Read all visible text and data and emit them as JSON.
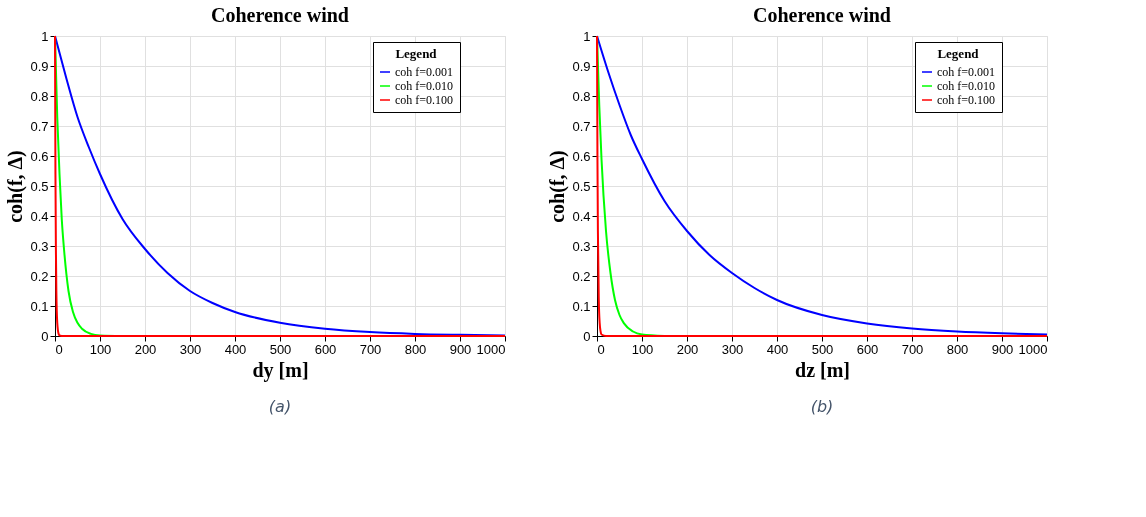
{
  "chart_data": [
    {
      "type": "line",
      "title": "Coherence   wind",
      "xlabel": "dy        [m]",
      "ylabel": "coh(f, Δ)",
      "legend_title": "Legend",
      "legend": "top right",
      "grid": true,
      "xlim": [
        0,
        1000
      ],
      "ylim": [
        0,
        1
      ],
      "xticks": [
        0,
        100,
        200,
        300,
        400,
        500,
        600,
        700,
        800,
        900,
        1000
      ],
      "yticks": [
        0,
        0.1,
        0.2,
        0.3,
        0.4,
        0.5,
        0.6,
        0.7,
        0.8,
        0.9,
        1
      ],
      "annotations": [
        "(a)"
      ],
      "series": [
        {
          "name": "coh f=0.001",
          "color": "#0000ff",
          "x": [
            0,
            25,
            50,
            75,
            100,
            150,
            200,
            250,
            300,
            350,
            400,
            500,
            600,
            700,
            800,
            900,
            1000
          ],
          "values": [
            1,
            0.86,
            0.73,
            0.63,
            0.54,
            0.39,
            0.29,
            0.21,
            0.15,
            0.11,
            0.08,
            0.044,
            0.024,
            0.013,
            0.007,
            0.004,
            0.002
          ]
        },
        {
          "name": "coh f=0.010",
          "color": "#00ff00",
          "x": [
            0,
            5,
            10,
            15,
            20,
            30,
            40,
            50,
            60,
            80,
            100,
            150
          ],
          "values": [
            1,
            0.73,
            0.54,
            0.39,
            0.29,
            0.15,
            0.08,
            0.044,
            0.024,
            0.007,
            0.002,
            0
          ]
        },
        {
          "name": "coh f=0.100",
          "color": "#ff0000",
          "x": [
            0,
            1,
            2,
            3,
            5,
            8,
            10,
            15,
            1000
          ],
          "values": [
            1,
            0.54,
            0.29,
            0.15,
            0.044,
            0.007,
            0.002,
            0,
            0
          ]
        }
      ]
    },
    {
      "type": "line",
      "title": "Coherence   wind",
      "xlabel": "dz        [m]",
      "ylabel": "coh(f, Δ)",
      "legend_title": "Legend",
      "legend": "top right",
      "grid": true,
      "xlim": [
        0,
        1000
      ],
      "ylim": [
        0,
        1
      ],
      "xticks": [
        0,
        100,
        200,
        300,
        400,
        500,
        600,
        700,
        800,
        900,
        1000
      ],
      "yticks": [
        0,
        0.1,
        0.2,
        0.3,
        0.4,
        0.5,
        0.6,
        0.7,
        0.8,
        0.9,
        1
      ],
      "annotations": [
        "(b)"
      ],
      "series": [
        {
          "name": "coh f=0.001",
          "color": "#0000ff",
          "x": [
            0,
            25,
            50,
            75,
            100,
            150,
            200,
            250,
            300,
            350,
            400,
            500,
            600,
            700,
            800,
            900,
            1000
          ],
          "values": [
            1,
            0.88,
            0.77,
            0.67,
            0.59,
            0.45,
            0.35,
            0.27,
            0.21,
            0.16,
            0.12,
            0.07,
            0.042,
            0.025,
            0.015,
            0.009,
            0.005
          ]
        },
        {
          "name": "coh f=0.010",
          "color": "#00ff00",
          "x": [
            0,
            5,
            10,
            20,
            30,
            40,
            50,
            60,
            80,
            100,
            150
          ],
          "values": [
            1,
            0.77,
            0.59,
            0.35,
            0.21,
            0.12,
            0.07,
            0.042,
            0.015,
            0.005,
            0
          ]
        },
        {
          "name": "coh f=0.100",
          "color": "#ff0000",
          "x": [
            0,
            1,
            2,
            4,
            6,
            8,
            10,
            20,
            1000
          ],
          "values": [
            1,
            0.59,
            0.35,
            0.12,
            0.042,
            0.015,
            0.005,
            0,
            0
          ]
        }
      ]
    }
  ]
}
